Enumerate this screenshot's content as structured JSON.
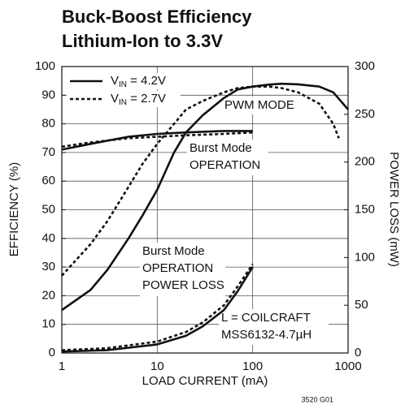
{
  "chart_data": {
    "type": "line",
    "title": [
      "Buck-Boost Efficiency",
      "Lithium-Ion to 3.3V"
    ],
    "x_label": "LOAD CURRENT (mA)",
    "y_label": "EFFICIENCY (%)",
    "y2_label": "POWER LOSS (mW)",
    "xscale": "log",
    "xlim": [
      1,
      1000
    ],
    "xticks": [
      1,
      10,
      100,
      1000
    ],
    "ylim": [
      0,
      100
    ],
    "yticks": [
      0,
      10,
      20,
      30,
      40,
      50,
      60,
      70,
      80,
      90,
      100
    ],
    "y2lim": [
      0,
      300
    ],
    "y2ticks": [
      0,
      50,
      100,
      150,
      200,
      250,
      300
    ],
    "grid": true,
    "legend": "upper left",
    "color": "#111111",
    "series": [
      {
        "name": {
          "base": "V",
          "sub": "IN",
          "rest": " = 4.2V"
        },
        "dash": false,
        "efficiency_burst": {
          "x": [
            1,
            2,
            5,
            10,
            20,
            50,
            100
          ],
          "values": [
            71,
            73,
            75.5,
            76.5,
            77,
            77.5,
            77.5
          ]
        },
        "efficiency_pwm": {
          "x": [
            1,
            2,
            3,
            5,
            7,
            10,
            15,
            20,
            30,
            50,
            70,
            100,
            150,
            200,
            300,
            500,
            700,
            1000
          ],
          "values": [
            15,
            22,
            29,
            40,
            48,
            57,
            70,
            77,
            83,
            89,
            92,
            93,
            93.7,
            94,
            93.8,
            93,
            91,
            85
          ]
        },
        "power_loss": {
          "axis": "y2",
          "x": [
            1,
            3,
            10,
            20,
            30,
            50,
            70,
            100
          ],
          "values": [
            1.5,
            3,
            9,
            18,
            28,
            45,
            65,
            90
          ]
        }
      },
      {
        "name": {
          "base": "V",
          "sub": "IN",
          "rest": " = 2.7V"
        },
        "dash": true,
        "efficiency_burst": {
          "x": [
            1,
            2,
            5,
            10,
            20,
            50,
            100
          ],
          "values": [
            72,
            73.5,
            75,
            75.5,
            76,
            76.5,
            77
          ]
        },
        "efficiency_pwm": {
          "x": [
            1,
            2,
            3,
            5,
            7,
            10,
            15,
            20,
            30,
            50,
            70,
            100,
            150,
            200,
            300,
            500,
            700,
            800
          ],
          "values": [
            27,
            38,
            46,
            58,
            66,
            73,
            80,
            85,
            88,
            91,
            92.5,
            93,
            93,
            92.5,
            91,
            87,
            80,
            75
          ]
        },
        "power_loss": {
          "axis": "y2",
          "x": [
            1,
            3,
            10,
            20,
            30,
            50,
            70,
            100
          ],
          "values": [
            3,
            5,
            12,
            22,
            32,
            50,
            70,
            93
          ]
        }
      }
    ],
    "annotations": [
      [
        "PWM MODE"
      ],
      [
        "Burst Mode",
        "OPERATION"
      ],
      [
        "Burst Mode",
        "OPERATION",
        "POWER LOSS"
      ],
      [
        "L = COILCRAFT",
        "MSS6132-4.7µH"
      ]
    ],
    "figure_id": "3520 G01"
  }
}
